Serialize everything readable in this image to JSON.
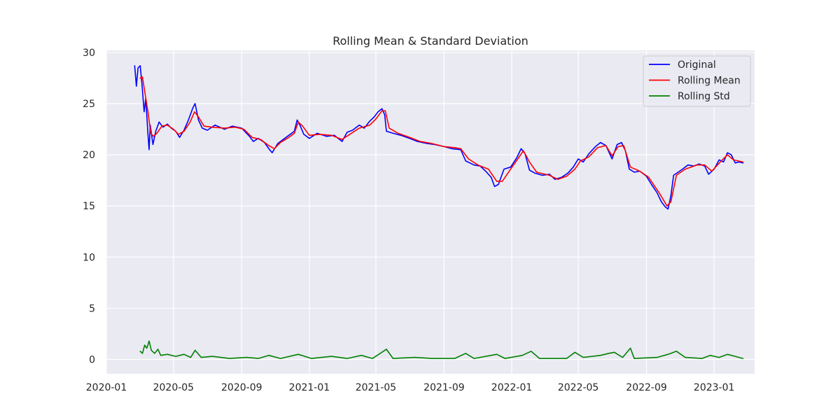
{
  "chart_data": {
    "type": "line",
    "title": "Rolling Mean & Standard Deviation",
    "xlabel": "",
    "ylabel": "",
    "xlim": [
      "2020-01-01",
      "2023-03-15"
    ],
    "ylim": [
      -1.4,
      30.2
    ],
    "grid": true,
    "legend_placement": "top-right",
    "x_ticks": [
      {
        "date": "2020-01-01",
        "label": "2020-01"
      },
      {
        "date": "2020-05-01",
        "label": "2020-05"
      },
      {
        "date": "2020-09-01",
        "label": "2020-09"
      },
      {
        "date": "2021-01-01",
        "label": "2021-01"
      },
      {
        "date": "2021-05-01",
        "label": "2021-05"
      },
      {
        "date": "2021-09-01",
        "label": "2021-09"
      },
      {
        "date": "2022-01-01",
        "label": "2022-01"
      },
      {
        "date": "2022-05-01",
        "label": "2022-05"
      },
      {
        "date": "2022-09-01",
        "label": "2022-09"
      },
      {
        "date": "2023-01-01",
        "label": "2023-01"
      }
    ],
    "y_ticks": [
      {
        "value": 0,
        "label": "0"
      },
      {
        "value": 5,
        "label": "5"
      },
      {
        "value": 10,
        "label": "10"
      },
      {
        "value": 15,
        "label": "15"
      },
      {
        "value": 20,
        "label": "20"
      },
      {
        "value": 25,
        "label": "25"
      },
      {
        "value": 30,
        "label": "30"
      }
    ],
    "series": [
      {
        "name": "Original",
        "color": "#0000ff",
        "points": [
          [
            "2020-02-21",
            28.7
          ],
          [
            "2020-02-24",
            26.7
          ],
          [
            "2020-02-27",
            28.5
          ],
          [
            "2020-03-02",
            28.7
          ],
          [
            "2020-03-05",
            27.0
          ],
          [
            "2020-03-09",
            24.2
          ],
          [
            "2020-03-12",
            25.5
          ],
          [
            "2020-03-16",
            22.0
          ],
          [
            "2020-03-18",
            20.5
          ],
          [
            "2020-03-20",
            22.9
          ],
          [
            "2020-03-25",
            21.0
          ],
          [
            "2020-03-30",
            22.3
          ],
          [
            "2020-04-05",
            23.2
          ],
          [
            "2020-04-12",
            22.7
          ],
          [
            "2020-04-20",
            23.0
          ],
          [
            "2020-04-27",
            22.6
          ],
          [
            "2020-05-05",
            22.3
          ],
          [
            "2020-05-12",
            21.7
          ],
          [
            "2020-05-20",
            22.4
          ],
          [
            "2020-05-28",
            23.4
          ],
          [
            "2020-06-05",
            24.6
          ],
          [
            "2020-06-09",
            25.0
          ],
          [
            "2020-06-15",
            23.4
          ],
          [
            "2020-06-22",
            22.6
          ],
          [
            "2020-07-01",
            22.4
          ],
          [
            "2020-07-15",
            22.9
          ],
          [
            "2020-08-01",
            22.5
          ],
          [
            "2020-08-15",
            22.8
          ],
          [
            "2020-09-01",
            22.6
          ],
          [
            "2020-09-15",
            21.8
          ],
          [
            "2020-09-22",
            21.3
          ],
          [
            "2020-10-01",
            21.6
          ],
          [
            "2020-10-12",
            21.2
          ],
          [
            "2020-10-20",
            20.6
          ],
          [
            "2020-10-26",
            20.2
          ],
          [
            "2020-11-05",
            21.1
          ],
          [
            "2020-11-15",
            21.5
          ],
          [
            "2020-11-25",
            21.9
          ],
          [
            "2020-12-05",
            22.3
          ],
          [
            "2020-12-10",
            23.4
          ],
          [
            "2020-12-15",
            22.9
          ],
          [
            "2020-12-22",
            22.0
          ],
          [
            "2021-01-01",
            21.6
          ],
          [
            "2021-01-15",
            22.1
          ],
          [
            "2021-02-01",
            21.8
          ],
          [
            "2021-02-15",
            21.9
          ],
          [
            "2021-03-01",
            21.3
          ],
          [
            "2021-03-10",
            22.2
          ],
          [
            "2021-03-20",
            22.4
          ],
          [
            "2021-04-01",
            22.9
          ],
          [
            "2021-04-10",
            22.6
          ],
          [
            "2021-04-20",
            23.3
          ],
          [
            "2021-04-28",
            23.7
          ],
          [
            "2021-05-05",
            24.2
          ],
          [
            "2021-05-12",
            24.5
          ],
          [
            "2021-05-17",
            23.9
          ],
          [
            "2021-05-20",
            22.3
          ],
          [
            "2021-06-01",
            22.1
          ],
          [
            "2021-06-15",
            21.9
          ],
          [
            "2021-07-01",
            21.6
          ],
          [
            "2021-07-15",
            21.3
          ],
          [
            "2021-08-01",
            21.1
          ],
          [
            "2021-08-15",
            21.0
          ],
          [
            "2021-09-01",
            20.8
          ],
          [
            "2021-09-15",
            20.6
          ],
          [
            "2021-10-01",
            20.5
          ],
          [
            "2021-10-10",
            19.4
          ],
          [
            "2021-10-25",
            19.0
          ],
          [
            "2021-11-05",
            18.9
          ],
          [
            "2021-11-15",
            18.4
          ],
          [
            "2021-11-25",
            17.8
          ],
          [
            "2021-12-01",
            16.9
          ],
          [
            "2021-12-08",
            17.1
          ],
          [
            "2021-12-18",
            18.6
          ],
          [
            "2021-12-30",
            18.8
          ],
          [
            "2022-01-10",
            19.7
          ],
          [
            "2022-01-18",
            20.6
          ],
          [
            "2022-01-25",
            20.1
          ],
          [
            "2022-02-02",
            18.5
          ],
          [
            "2022-02-12",
            18.2
          ],
          [
            "2022-02-25",
            18.0
          ],
          [
            "2022-03-10",
            18.1
          ],
          [
            "2022-03-20",
            17.6
          ],
          [
            "2022-04-01",
            17.8
          ],
          [
            "2022-04-12",
            18.2
          ],
          [
            "2022-04-22",
            18.8
          ],
          [
            "2022-05-01",
            19.6
          ],
          [
            "2022-05-10",
            19.3
          ],
          [
            "2022-05-20",
            20.1
          ],
          [
            "2022-06-01",
            20.8
          ],
          [
            "2022-06-10",
            21.2
          ],
          [
            "2022-06-20",
            20.9
          ],
          [
            "2022-07-01",
            19.6
          ],
          [
            "2022-07-10",
            21.0
          ],
          [
            "2022-07-18",
            21.2
          ],
          [
            "2022-07-25",
            20.4
          ],
          [
            "2022-08-01",
            18.6
          ],
          [
            "2022-08-10",
            18.3
          ],
          [
            "2022-08-20",
            18.4
          ],
          [
            "2022-09-01",
            17.9
          ],
          [
            "2022-09-10",
            17.1
          ],
          [
            "2022-09-20",
            16.3
          ],
          [
            "2022-09-28",
            15.4
          ],
          [
            "2022-10-05",
            14.9
          ],
          [
            "2022-10-10",
            14.7
          ],
          [
            "2022-10-15",
            16.0
          ],
          [
            "2022-10-20",
            18.0
          ],
          [
            "2022-10-28",
            18.3
          ],
          [
            "2022-11-05",
            18.6
          ],
          [
            "2022-11-15",
            19.0
          ],
          [
            "2022-11-25",
            18.9
          ],
          [
            "2022-12-05",
            19.1
          ],
          [
            "2022-12-15",
            18.9
          ],
          [
            "2022-12-22",
            18.1
          ],
          [
            "2023-01-01",
            18.6
          ],
          [
            "2023-01-10",
            19.5
          ],
          [
            "2023-01-18",
            19.3
          ],
          [
            "2023-01-25",
            20.2
          ],
          [
            "2023-02-01",
            20.0
          ],
          [
            "2023-02-08",
            19.2
          ],
          [
            "2023-02-15",
            19.3
          ],
          [
            "2023-02-22",
            19.2
          ]
        ]
      },
      {
        "name": "Rolling Mean",
        "color": "#ff0000",
        "points": [
          [
            "2020-03-02",
            27.5
          ],
          [
            "2020-03-06",
            27.6
          ],
          [
            "2020-03-10",
            26.2
          ],
          [
            "2020-03-16",
            24.2
          ],
          [
            "2020-03-21",
            22.1
          ],
          [
            "2020-03-26",
            21.8
          ],
          [
            "2020-04-01",
            22.1
          ],
          [
            "2020-04-10",
            22.8
          ],
          [
            "2020-04-20",
            22.9
          ],
          [
            "2020-05-01",
            22.5
          ],
          [
            "2020-05-10",
            22.0
          ],
          [
            "2020-05-20",
            22.3
          ],
          [
            "2020-05-31",
            23.2
          ],
          [
            "2020-06-08",
            24.2
          ],
          [
            "2020-06-15",
            23.7
          ],
          [
            "2020-06-25",
            22.8
          ],
          [
            "2020-07-10",
            22.7
          ],
          [
            "2020-08-01",
            22.6
          ],
          [
            "2020-08-20",
            22.7
          ],
          [
            "2020-09-05",
            22.5
          ],
          [
            "2020-09-20",
            21.7
          ],
          [
            "2020-10-05",
            21.5
          ],
          [
            "2020-10-20",
            20.9
          ],
          [
            "2020-10-30",
            20.6
          ],
          [
            "2020-11-10",
            21.2
          ],
          [
            "2020-11-25",
            21.7
          ],
          [
            "2020-12-05",
            22.1
          ],
          [
            "2020-12-12",
            23.2
          ],
          [
            "2020-12-20",
            22.8
          ],
          [
            "2021-01-01",
            21.9
          ],
          [
            "2021-01-20",
            22.0
          ],
          [
            "2021-02-10",
            21.9
          ],
          [
            "2021-03-01",
            21.5
          ],
          [
            "2021-03-15",
            22.0
          ],
          [
            "2021-04-01",
            22.6
          ],
          [
            "2021-04-20",
            22.9
          ],
          [
            "2021-05-01",
            23.5
          ],
          [
            "2021-05-12",
            24.3
          ],
          [
            "2021-05-18",
            24.3
          ],
          [
            "2021-05-25",
            22.6
          ],
          [
            "2021-06-10",
            22.1
          ],
          [
            "2021-07-01",
            21.7
          ],
          [
            "2021-07-20",
            21.3
          ],
          [
            "2021-08-10",
            21.1
          ],
          [
            "2021-09-01",
            20.8
          ],
          [
            "2021-09-20",
            20.7
          ],
          [
            "2021-10-01",
            20.6
          ],
          [
            "2021-10-15",
            19.6
          ],
          [
            "2021-11-01",
            19.0
          ],
          [
            "2021-11-20",
            18.6
          ],
          [
            "2021-12-05",
            17.4
          ],
          [
            "2021-12-15",
            17.4
          ],
          [
            "2021-12-30",
            18.6
          ],
          [
            "2022-01-12",
            19.6
          ],
          [
            "2022-01-22",
            20.4
          ],
          [
            "2022-02-02",
            19.3
          ],
          [
            "2022-02-15",
            18.3
          ],
          [
            "2022-03-10",
            18.0
          ],
          [
            "2022-03-25",
            17.6
          ],
          [
            "2022-04-10",
            17.9
          ],
          [
            "2022-04-25",
            18.6
          ],
          [
            "2022-05-05",
            19.4
          ],
          [
            "2022-05-20",
            19.8
          ],
          [
            "2022-06-05",
            20.7
          ],
          [
            "2022-06-20",
            20.9
          ],
          [
            "2022-07-01",
            19.9
          ],
          [
            "2022-07-12",
            20.8
          ],
          [
            "2022-07-22",
            20.9
          ],
          [
            "2022-08-03",
            18.8
          ],
          [
            "2022-08-20",
            18.4
          ],
          [
            "2022-09-05",
            17.8
          ],
          [
            "2022-09-25",
            16.2
          ],
          [
            "2022-10-08",
            15.0
          ],
          [
            "2022-10-15",
            15.4
          ],
          [
            "2022-10-25",
            18.0
          ],
          [
            "2022-11-10",
            18.6
          ],
          [
            "2022-12-01",
            19.0
          ],
          [
            "2022-12-15",
            19.0
          ],
          [
            "2022-12-28",
            18.4
          ],
          [
            "2023-01-12",
            19.3
          ],
          [
            "2023-01-25",
            20.0
          ],
          [
            "2023-02-05",
            19.5
          ],
          [
            "2023-02-22",
            19.3
          ]
        ]
      },
      {
        "name": "Rolling Std",
        "color": "#008000",
        "points": [
          [
            "2020-03-02",
            0.8
          ],
          [
            "2020-03-06",
            0.6
          ],
          [
            "2020-03-10",
            1.4
          ],
          [
            "2020-03-14",
            1.1
          ],
          [
            "2020-03-18",
            1.8
          ],
          [
            "2020-03-22",
            0.9
          ],
          [
            "2020-03-28",
            0.6
          ],
          [
            "2020-04-03",
            1.0
          ],
          [
            "2020-04-08",
            0.4
          ],
          [
            "2020-04-20",
            0.5
          ],
          [
            "2020-05-05",
            0.3
          ],
          [
            "2020-05-20",
            0.5
          ],
          [
            "2020-06-01",
            0.2
          ],
          [
            "2020-06-09",
            0.9
          ],
          [
            "2020-06-20",
            0.2
          ],
          [
            "2020-07-10",
            0.3
          ],
          [
            "2020-08-10",
            0.1
          ],
          [
            "2020-09-10",
            0.2
          ],
          [
            "2020-10-01",
            0.1
          ],
          [
            "2020-10-20",
            0.4
          ],
          [
            "2020-11-10",
            0.1
          ],
          [
            "2020-12-12",
            0.5
          ],
          [
            "2021-01-05",
            0.1
          ],
          [
            "2021-02-10",
            0.3
          ],
          [
            "2021-03-10",
            0.1
          ],
          [
            "2021-04-05",
            0.4
          ],
          [
            "2021-04-25",
            0.1
          ],
          [
            "2021-05-20",
            1.0
          ],
          [
            "2021-06-01",
            0.1
          ],
          [
            "2021-07-10",
            0.2
          ],
          [
            "2021-08-10",
            0.1
          ],
          [
            "2021-09-20",
            0.1
          ],
          [
            "2021-10-10",
            0.6
          ],
          [
            "2021-10-25",
            0.1
          ],
          [
            "2021-12-05",
            0.5
          ],
          [
            "2021-12-20",
            0.1
          ],
          [
            "2022-01-20",
            0.4
          ],
          [
            "2022-02-05",
            0.8
          ],
          [
            "2022-02-20",
            0.1
          ],
          [
            "2022-04-10",
            0.1
          ],
          [
            "2022-04-25",
            0.7
          ],
          [
            "2022-05-10",
            0.2
          ],
          [
            "2022-06-10",
            0.4
          ],
          [
            "2022-06-25",
            0.6
          ],
          [
            "2022-07-05",
            0.7
          ],
          [
            "2022-07-20",
            0.2
          ],
          [
            "2022-08-03",
            1.1
          ],
          [
            "2022-08-10",
            0.1
          ],
          [
            "2022-09-20",
            0.2
          ],
          [
            "2022-10-10",
            0.5
          ],
          [
            "2022-10-25",
            0.8
          ],
          [
            "2022-11-10",
            0.2
          ],
          [
            "2022-12-10",
            0.1
          ],
          [
            "2022-12-25",
            0.4
          ],
          [
            "2023-01-10",
            0.2
          ],
          [
            "2023-01-25",
            0.5
          ],
          [
            "2023-02-08",
            0.3
          ],
          [
            "2023-02-22",
            0.1
          ]
        ]
      }
    ]
  }
}
